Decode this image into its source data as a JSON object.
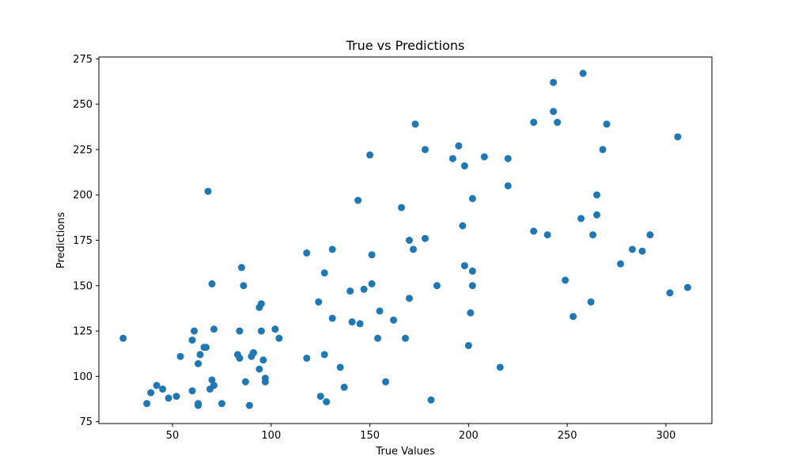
{
  "chart_data": {
    "type": "scatter",
    "title": "True vs Predictions",
    "xlabel": "True Values",
    "ylabel": "Predictions",
    "xlim": [
      12.7,
      323.3
    ],
    "ylim": [
      74,
      276
    ],
    "xticks": [
      50,
      100,
      150,
      200,
      250,
      300
    ],
    "yticks": [
      75,
      100,
      125,
      150,
      175,
      200,
      225,
      250,
      275
    ],
    "grid": false,
    "marker_color": "#1f77b4",
    "x": [
      25,
      37,
      39,
      42,
      45,
      48,
      52,
      54,
      60,
      60,
      61,
      63,
      63,
      63,
      64,
      66,
      67,
      68,
      69,
      70,
      70,
      71,
      71,
      75,
      83,
      84,
      84,
      85,
      86,
      87,
      89,
      90,
      91,
      91,
      94,
      94,
      95,
      95,
      96,
      97,
      97,
      102,
      104,
      118,
      118,
      124,
      125,
      127,
      127,
      128,
      131,
      131,
      135,
      137,
      140,
      141,
      144,
      145,
      147,
      150,
      151,
      151,
      154,
      155,
      158,
      162,
      166,
      168,
      170,
      170,
      172,
      173,
      178,
      178,
      181,
      184,
      192,
      195,
      197,
      198,
      198,
      200,
      201,
      202,
      202,
      202,
      208,
      216,
      220,
      220,
      233,
      233,
      240,
      243,
      243,
      245,
      249,
      253,
      257,
      258,
      262,
      263,
      265,
      265,
      268,
      270,
      277,
      283,
      288,
      292,
      302,
      306,
      311
    ],
    "y": [
      121,
      85,
      91,
      95,
      93,
      88,
      89,
      111,
      120,
      92,
      125,
      84,
      85,
      107,
      112,
      116,
      116,
      202,
      93,
      151,
      98,
      95,
      126,
      85,
      112,
      110,
      125,
      160,
      150,
      97,
      84,
      111,
      113,
      113,
      104,
      138,
      140,
      125,
      109,
      97,
      99,
      126,
      121,
      110,
      168,
      141,
      89,
      157,
      112,
      86,
      132,
      170,
      105,
      94,
      147,
      130,
      197,
      129,
      148,
      222,
      167,
      151,
      121,
      136,
      97,
      131,
      193,
      121,
      143,
      175,
      170,
      239,
      225,
      176,
      87,
      150,
      220,
      227,
      183,
      161,
      216,
      117,
      135,
      150,
      158,
      198,
      221,
      105,
      205,
      220,
      180,
      240,
      178,
      246,
      262,
      240,
      153,
      133,
      187,
      267,
      141,
      178,
      189,
      200,
      225,
      239,
      162,
      170,
      169,
      178,
      146,
      232,
      149
    ]
  }
}
